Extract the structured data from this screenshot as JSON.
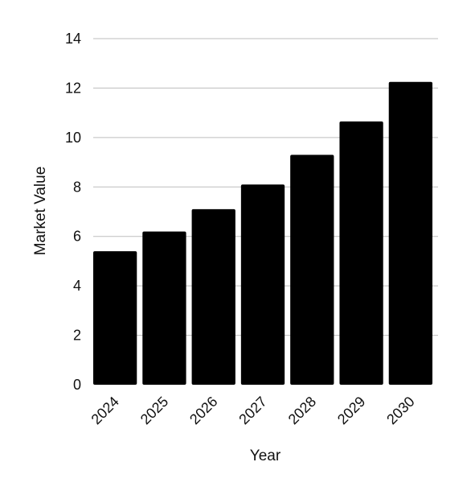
{
  "chart_data": {
    "type": "bar",
    "categories": [
      "2024",
      "2025",
      "2026",
      "2027",
      "2028",
      "2029",
      "2030"
    ],
    "values": [
      5.4,
      6.2,
      7.1,
      8.1,
      9.3,
      10.65,
      12.25
    ],
    "xlabel": "Year",
    "ylabel": "Market Value",
    "ylim": [
      0,
      14
    ],
    "yticks": [
      0,
      2,
      4,
      6,
      8,
      10,
      12,
      14
    ],
    "grid": true,
    "bar_color": "#000000",
    "grid_color": "#bdbdbd"
  }
}
